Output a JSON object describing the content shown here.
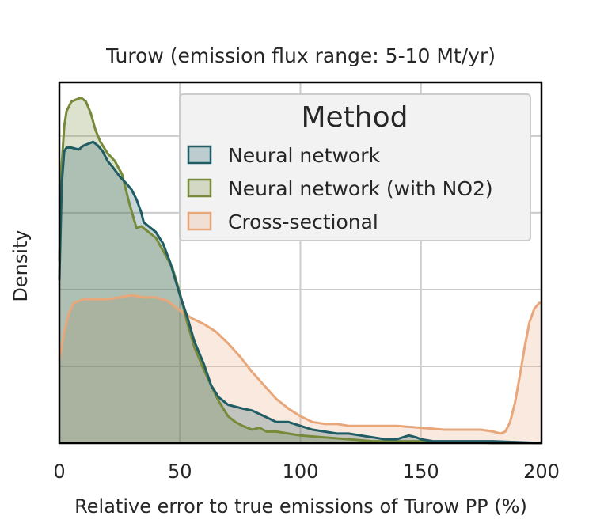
{
  "chart_data": {
    "type": "area",
    "title": "Turow (emission flux range: 5-10 Mt/yr)",
    "xlabel": "Relative error to true emissions of Turow PP (%)",
    "ylabel": "Density",
    "xlim": [
      0,
      200
    ],
    "ylim": [
      0,
      0.0188
    ],
    "x_ticks": [
      0,
      50,
      100,
      150,
      200
    ],
    "y_ticks": [
      0.004,
      0.008,
      0.012,
      0.016
    ],
    "y_tick_labels_visible": false,
    "grid": true,
    "legend": {
      "title": "Method",
      "placement": "top-right",
      "entries": [
        "Neural network",
        "Neural network (with NO2)",
        "Cross-sectional"
      ]
    },
    "series": [
      {
        "name": "Neural network",
        "color": "#1f5c63",
        "x": [
          0,
          1,
          2,
          3,
          4,
          5,
          8,
          10,
          12,
          14,
          16,
          18,
          20,
          22,
          25,
          28,
          30,
          32,
          34,
          35,
          37,
          40,
          43,
          46,
          50,
          53,
          56,
          60,
          63,
          66,
          70,
          73,
          76,
          80,
          85,
          90,
          95,
          100,
          105,
          110,
          115,
          120,
          125,
          130,
          135,
          140,
          145,
          148,
          150,
          155,
          160,
          170,
          180,
          190,
          200
        ],
        "y": [
          0.0085,
          0.0135,
          0.0152,
          0.0154,
          0.0154,
          0.0154,
          0.0153,
          0.0155,
          0.0156,
          0.0157,
          0.0155,
          0.0152,
          0.0147,
          0.0144,
          0.0139,
          0.0135,
          0.0132,
          0.0127,
          0.012,
          0.0115,
          0.0113,
          0.011,
          0.0104,
          0.0094,
          0.0077,
          0.0066,
          0.0053,
          0.0041,
          0.003,
          0.0024,
          0.002,
          0.0019,
          0.0018,
          0.0017,
          0.0014,
          0.0011,
          0.0011,
          0.0009,
          0.0007,
          0.0006,
          0.0005,
          0.0005,
          0.0004,
          0.0003,
          0.0002,
          0.0002,
          0.0004,
          0.0003,
          0.0002,
          0.0001,
          0.0001,
          0.0001,
          0.0001,
          5e-05,
          0.0
        ]
      },
      {
        "name": "Neural network (with NO2)",
        "color": "#768a3a",
        "x": [
          0,
          1,
          2,
          3,
          5,
          7,
          9,
          11,
          13,
          15,
          17,
          20,
          23,
          26,
          29,
          32,
          34,
          36,
          40,
          44,
          47,
          50,
          53,
          56,
          60,
          63,
          66,
          70,
          73,
          76,
          80,
          83,
          86,
          90,
          95,
          100,
          110,
          120,
          130,
          140,
          150,
          160,
          170,
          180,
          190,
          200
        ],
        "y": [
          0.0095,
          0.0145,
          0.0165,
          0.0173,
          0.0178,
          0.0179,
          0.018,
          0.0178,
          0.0172,
          0.0163,
          0.0157,
          0.0151,
          0.0147,
          0.014,
          0.0125,
          0.0112,
          0.0113,
          0.0111,
          0.0107,
          0.0098,
          0.0091,
          0.0078,
          0.0063,
          0.005,
          0.0038,
          0.003,
          0.0022,
          0.0014,
          0.0011,
          0.0009,
          0.0007,
          0.0008,
          0.0006,
          0.0006,
          0.0005,
          0.0004,
          0.0003,
          0.0002,
          0.0001,
          0.0001,
          0.0001,
          5e-05,
          5e-05,
          0.0,
          0.0,
          0.0
        ]
      },
      {
        "name": "Cross-sectional",
        "color": "#e8a77b",
        "x": [
          0,
          2,
          4,
          6,
          8,
          10,
          15,
          20,
          25,
          30,
          35,
          40,
          45,
          50,
          55,
          60,
          65,
          70,
          75,
          80,
          85,
          90,
          95,
          100,
          105,
          110,
          115,
          120,
          125,
          130,
          140,
          150,
          160,
          170,
          175,
          180,
          183,
          185,
          187,
          189,
          191,
          193,
          195,
          197,
          199,
          200
        ],
        "y": [
          0.0043,
          0.0058,
          0.0068,
          0.0073,
          0.0074,
          0.0075,
          0.0075,
          0.0075,
          0.0076,
          0.0077,
          0.0076,
          0.0076,
          0.0074,
          0.0069,
          0.0065,
          0.0062,
          0.0058,
          0.0052,
          0.0045,
          0.0037,
          0.003,
          0.0023,
          0.0018,
          0.0014,
          0.0011,
          0.001,
          0.001,
          0.0009,
          0.0009,
          0.0009,
          0.0009,
          0.0008,
          0.0007,
          0.0007,
          0.0007,
          0.0006,
          0.0005,
          0.0006,
          0.0011,
          0.0021,
          0.0035,
          0.005,
          0.0063,
          0.007,
          0.0073,
          0.0073
        ]
      }
    ]
  }
}
